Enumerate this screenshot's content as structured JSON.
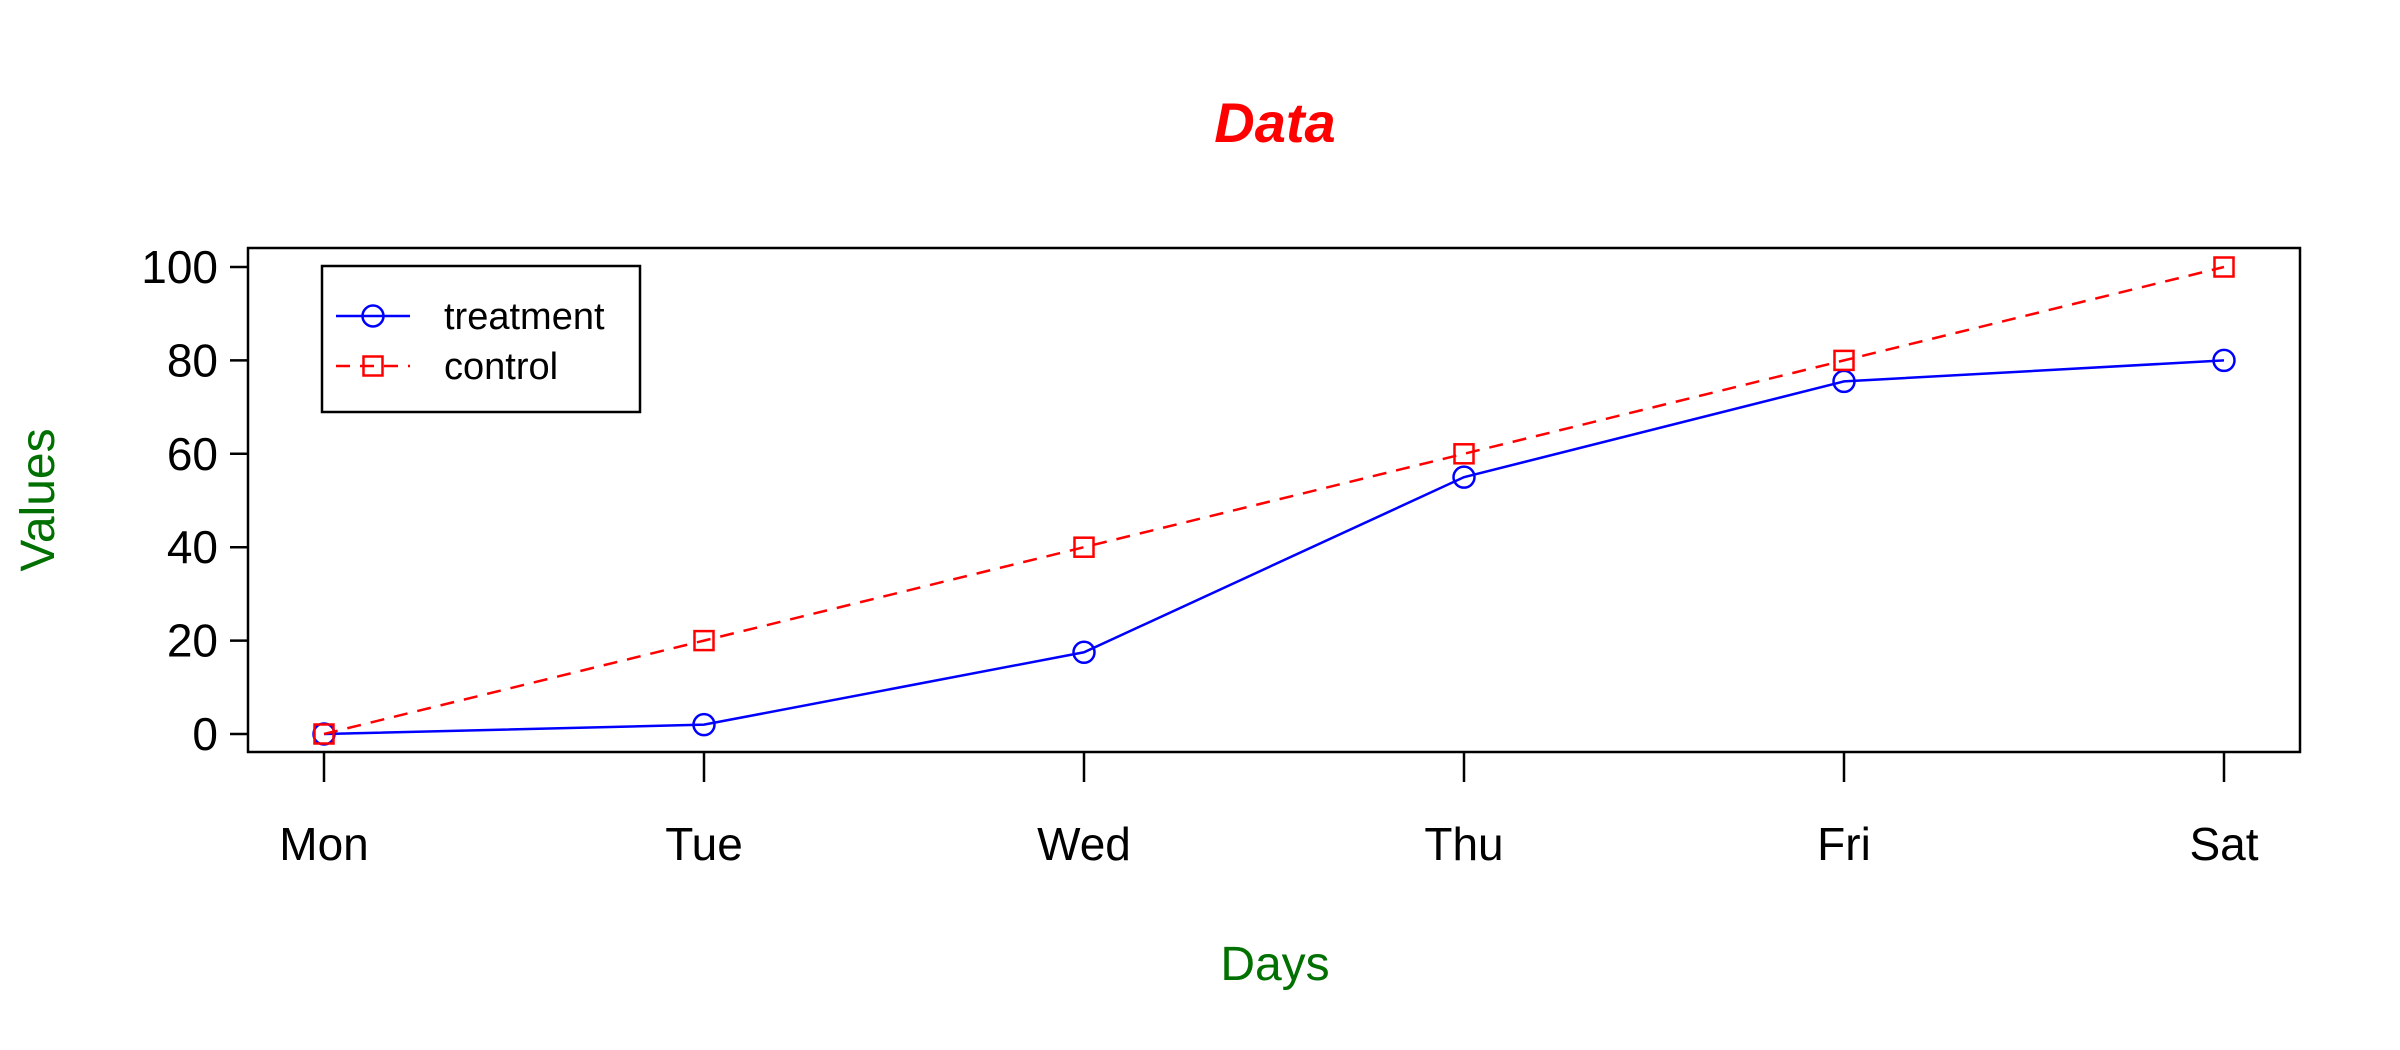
{
  "chart_data": {
    "type": "line",
    "title": "Data",
    "xlabel": "Days",
    "ylabel": "Values",
    "categories": [
      "Mon",
      "Tue",
      "Wed",
      "Thu",
      "Fri",
      "Sat"
    ],
    "yticks": [
      0,
      20,
      40,
      60,
      80,
      100
    ],
    "ylim": [
      0,
      100
    ],
    "grid": false,
    "legend_position": "top-left",
    "series": [
      {
        "name": "treatment",
        "values": [
          0,
          2,
          17.5,
          55,
          75.5,
          80
        ],
        "color": "#0000FF",
        "line": "solid",
        "marker": "circle"
      },
      {
        "name": "control",
        "values": [
          0,
          20,
          40,
          60,
          80,
          100
        ],
        "color": "#FF0000",
        "line": "dashed",
        "marker": "square"
      }
    ],
    "title_color": "#FF0000",
    "label_color": "#007000"
  }
}
